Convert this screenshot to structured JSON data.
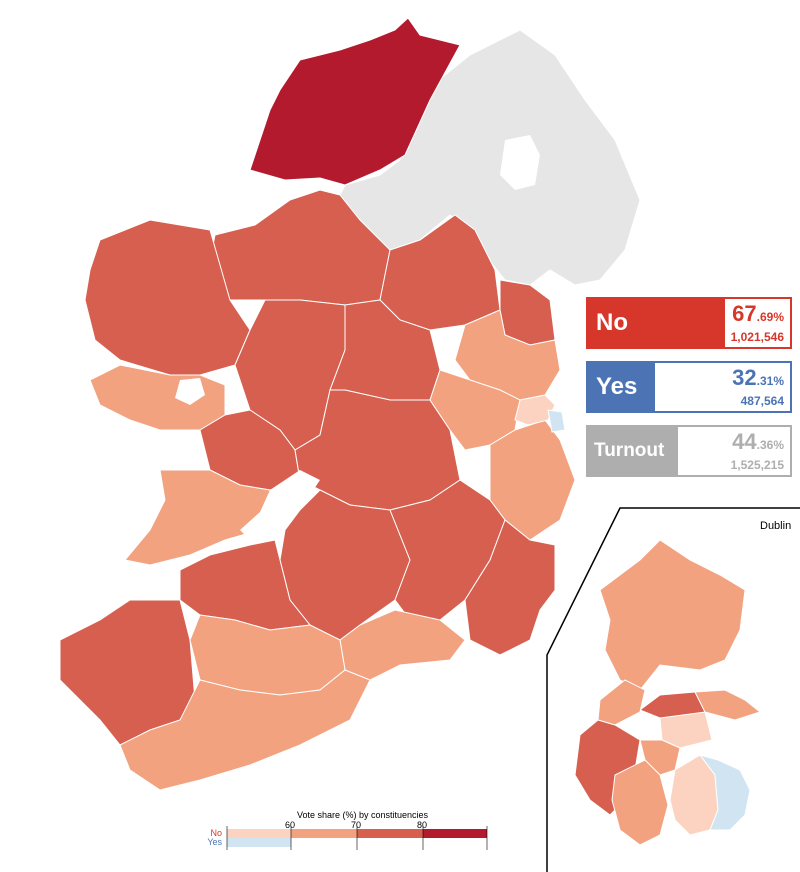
{
  "results": {
    "no": {
      "label": "No",
      "pct_main": "67",
      "pct_decimal": ".69%",
      "count": "1,021,546"
    },
    "yes": {
      "label": "Yes",
      "pct_main": "32",
      "pct_decimal": ".31%",
      "count": "487,564"
    },
    "turnout": {
      "label": "Turnout",
      "pct_main": "44",
      "pct_decimal": ".36%",
      "count": "1,525,215"
    }
  },
  "inset": {
    "title": "Dublin"
  },
  "legend": {
    "title": "Vote share (%) by constituencies",
    "no_label": "No",
    "yes_label": "Yes",
    "ticks": [
      "60",
      "70",
      "80"
    ]
  },
  "colors": {
    "no_50_60": "#fbd3c0",
    "no_60_70": "#f2a27f",
    "no_70_80": "#d65f4f",
    "no_80_90": "#b31a2e",
    "yes_50_60": "#d0e4f2",
    "not_voting": "#e6e6e6",
    "no_accent": "#d7372b",
    "yes_accent": "#4c74b5",
    "turnout_accent": "#aeaeae"
  }
}
